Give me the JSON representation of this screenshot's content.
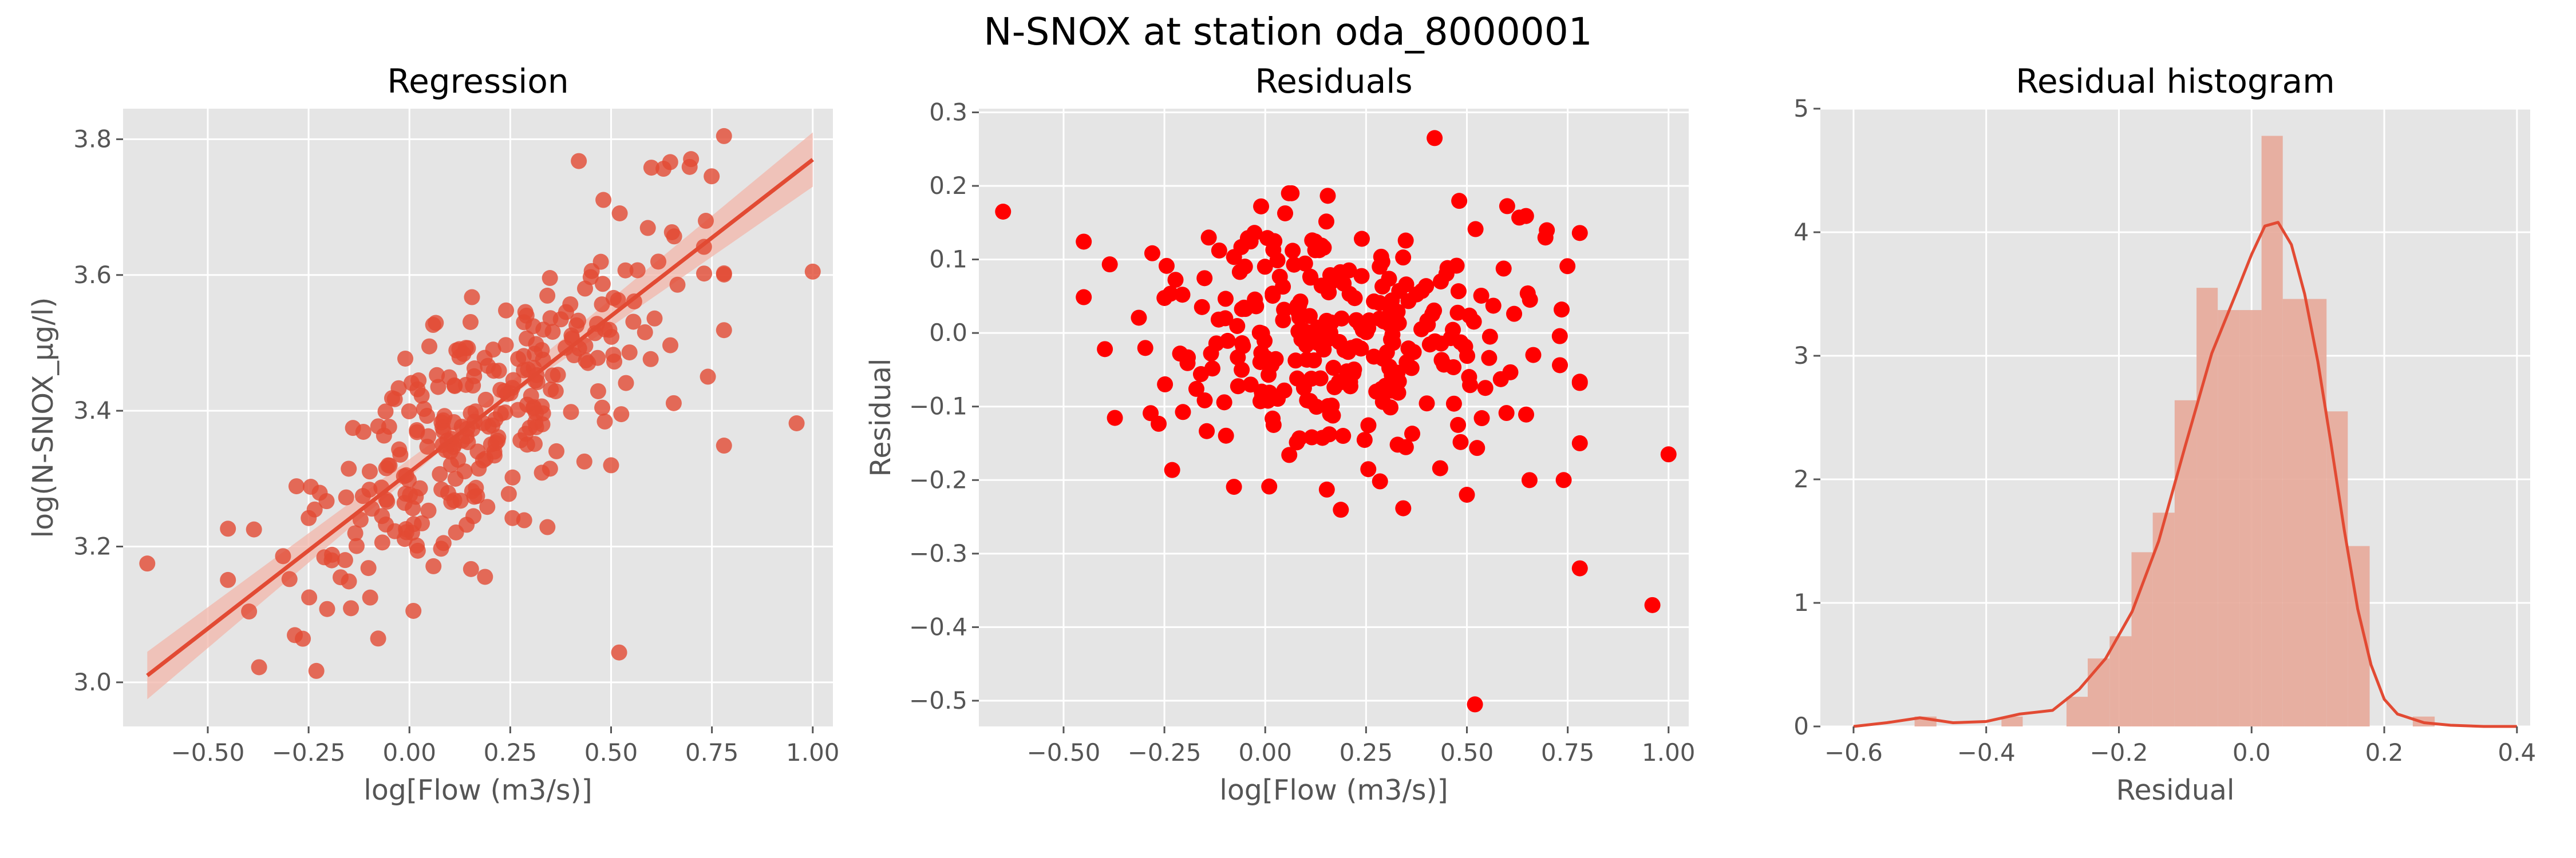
{
  "figure": {
    "title": "N-SNOX at station oda_8000001"
  },
  "panels": {
    "regression": {
      "title": "Regression",
      "xlabel": "log[Flow (m3/s)]",
      "ylabel": "log(N-SNOX_µg/l)"
    },
    "residuals": {
      "title": "Residuals",
      "xlabel": "log[Flow (m3/s)]",
      "ylabel": "Residual"
    },
    "histogram": {
      "title": "Residual histogram",
      "xlabel": "Residual",
      "ylabel": ""
    }
  },
  "chart_data": [
    {
      "type": "scatter",
      "title": "Regression",
      "xlabel": "log[Flow (m3/s)]",
      "ylabel": "log(N-SNOX_µg/l)",
      "xlim": [
        -0.71,
        1.05
      ],
      "ylim": [
        2.935,
        3.845
      ],
      "xticks": [
        -0.5,
        -0.25,
        0.0,
        0.25,
        0.5,
        0.75,
        1.0
      ],
      "xtick_labels": [
        "−0.50",
        "−0.25",
        "0.00",
        "0.25",
        "0.50",
        "0.75",
        "1.00"
      ],
      "yticks": [
        3.0,
        3.2,
        3.4,
        3.6,
        3.8
      ],
      "ytick_labels": [
        "3.0",
        "3.2",
        "3.4",
        "3.6",
        "3.8"
      ],
      "fit_line": {
        "x": [
          -0.65,
          1.0
        ],
        "y": [
          3.01,
          3.77
        ]
      },
      "confidence_band": {
        "x": [
          -0.65,
          0.175,
          1.0
        ],
        "lower": [
          2.975,
          3.39,
          3.73
        ],
        "upper": [
          3.045,
          3.405,
          3.81
        ]
      },
      "colors": {
        "points": "#e24a33",
        "line": "#e24a33",
        "band": "#f2b5a9",
        "grid": "#ffffff",
        "background": "#e5e5e5"
      },
      "grid": true
    },
    {
      "type": "scatter",
      "title": "Residuals",
      "xlabel": "log[Flow (m3/s)]",
      "ylabel": "Residual",
      "xlim": [
        -0.71,
        1.05
      ],
      "ylim": [
        -0.535,
        0.305
      ],
      "xticks": [
        -0.5,
        -0.25,
        0.0,
        0.25,
        0.5,
        0.75,
        1.0
      ],
      "xtick_labels": [
        "−0.50",
        "−0.25",
        "0.00",
        "0.25",
        "0.50",
        "0.75",
        "1.00"
      ],
      "yticks": [
        0.3,
        0.2,
        0.1,
        0.0,
        -0.1,
        -0.2,
        -0.3,
        -0.4,
        -0.5
      ],
      "ytick_labels": [
        "0.3",
        "0.2",
        "0.1",
        "0.0",
        "−0.1",
        "−0.2",
        "−0.3",
        "−0.4",
        "−0.5"
      ],
      "colors": {
        "points": "#ff0000",
        "grid": "#ffffff",
        "background": "#e5e5e5"
      },
      "grid": true
    },
    {
      "type": "bar",
      "title": "Residual histogram",
      "xlabel": "Residual",
      "ylabel": "",
      "xlim": [
        -0.65,
        0.42
      ],
      "ylim": [
        0,
        5
      ],
      "xticks": [
        -0.6,
        -0.4,
        -0.2,
        0.0,
        0.2,
        0.4
      ],
      "xtick_labels": [
        "−0.6",
        "−0.4",
        "−0.2",
        "0.0",
        "0.2",
        "0.4"
      ],
      "yticks": [
        0,
        1,
        2,
        3,
        4,
        5
      ],
      "ytick_labels": [
        "0",
        "1",
        "2",
        "3",
        "4",
        "5"
      ],
      "bins": [
        {
          "x0": -0.508,
          "x1": -0.475,
          "height": 0.08
        },
        {
          "x0": -0.475,
          "x1": -0.443,
          "height": 0.0
        },
        {
          "x0": -0.443,
          "x1": -0.41,
          "height": 0.0
        },
        {
          "x0": -0.41,
          "x1": -0.377,
          "height": 0.0
        },
        {
          "x0": -0.377,
          "x1": -0.345,
          "height": 0.08
        },
        {
          "x0": -0.345,
          "x1": -0.312,
          "height": 0.0
        },
        {
          "x0": -0.312,
          "x1": -0.279,
          "height": 0.0
        },
        {
          "x0": -0.279,
          "x1": -0.247,
          "height": 0.24
        },
        {
          "x0": -0.247,
          "x1": -0.214,
          "height": 0.55
        },
        {
          "x0": -0.214,
          "x1": -0.181,
          "height": 0.73
        },
        {
          "x0": -0.181,
          "x1": -0.149,
          "height": 1.41
        },
        {
          "x0": -0.149,
          "x1": -0.116,
          "height": 1.73
        },
        {
          "x0": -0.116,
          "x1": -0.083,
          "height": 2.64
        },
        {
          "x0": -0.083,
          "x1": -0.051,
          "height": 3.55
        },
        {
          "x0": -0.051,
          "x1": -0.018,
          "height": 3.37
        },
        {
          "x0": -0.018,
          "x1": 0.015,
          "height": 3.37
        },
        {
          "x0": 0.015,
          "x1": 0.047,
          "height": 4.78
        },
        {
          "x0": 0.047,
          "x1": 0.08,
          "height": 3.46
        },
        {
          "x0": 0.08,
          "x1": 0.113,
          "height": 3.46
        },
        {
          "x0": 0.113,
          "x1": 0.145,
          "height": 2.55
        },
        {
          "x0": 0.145,
          "x1": 0.178,
          "height": 1.46
        },
        {
          "x0": 0.178,
          "x1": 0.211,
          "height": 0.0
        },
        {
          "x0": 0.211,
          "x1": 0.243,
          "height": 0.0
        },
        {
          "x0": 0.243,
          "x1": 0.276,
          "height": 0.08
        }
      ],
      "kde": {
        "x": [
          -0.6,
          -0.55,
          -0.5,
          -0.45,
          -0.4,
          -0.35,
          -0.3,
          -0.26,
          -0.22,
          -0.18,
          -0.14,
          -0.1,
          -0.06,
          -0.02,
          0.0,
          0.02,
          0.04,
          0.06,
          0.08,
          0.1,
          0.12,
          0.14,
          0.16,
          0.18,
          0.2,
          0.22,
          0.26,
          0.3,
          0.35,
          0.4
        ],
        "y": [
          0.0,
          0.03,
          0.07,
          0.03,
          0.04,
          0.1,
          0.13,
          0.3,
          0.55,
          0.93,
          1.5,
          2.27,
          3.02,
          3.55,
          3.82,
          4.05,
          4.08,
          3.9,
          3.5,
          2.95,
          2.28,
          1.58,
          0.95,
          0.5,
          0.22,
          0.1,
          0.03,
          0.01,
          0.0,
          0.0
        ]
      },
      "colors": {
        "bars": "#e7a899",
        "line": "#e24a33",
        "grid": "#ffffff",
        "background": "#e5e5e5"
      },
      "grid": true
    }
  ]
}
